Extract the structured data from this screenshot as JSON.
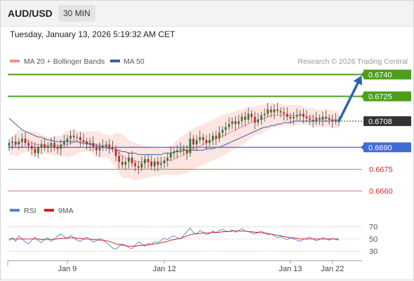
{
  "header": {
    "pair": "AUD/USD",
    "timeframe": "30 MIN"
  },
  "timestamp": "Tuesday, January 13, 2026 5:19:32 AM CET",
  "legend": {
    "ma20_bb": "MA 20 + Bollinger Bands",
    "ma50": "MA 50",
    "rsi": "RSI",
    "rsi_ma": "9MA"
  },
  "research_credit": "Research © 2026 Trading Central",
  "colors": {
    "resistance": "#4d9e1a",
    "current": "#333333",
    "pivot": "#3f6bd6",
    "support": "#cc2a2a",
    "bullish_candle": "#2e7d32",
    "bearish_candle": "#c62828",
    "bollinger_fill": "#fde1dc",
    "ma20": "#ef8f8f",
    "ma50": "#3a5f9e",
    "rsi_line": "#5b7fd0",
    "rsi_ma_line": "#cc2222",
    "arrow": "#2c64b0"
  },
  "chart_data": [
    {
      "type": "candlestick",
      "y_range": [
        0.6655,
        0.6745
      ],
      "levels": [
        {
          "label": "0.6740",
          "value": 0.674,
          "kind": "resistance"
        },
        {
          "label": "0.6725",
          "value": 0.6725,
          "kind": "resistance"
        },
        {
          "label": "0.6708",
          "value": 0.6708,
          "kind": "current"
        },
        {
          "label": "0.6690",
          "value": 0.669,
          "kind": "pivot"
        },
        {
          "label": "0.6675",
          "value": 0.6675,
          "kind": "support"
        },
        {
          "label": "0.6660",
          "value": 0.666,
          "kind": "support"
        }
      ],
      "close": [
        0.6693,
        0.6694,
        0.6692,
        0.6694,
        0.6696,
        0.6693,
        0.6691,
        0.6689,
        0.6686,
        0.669,
        0.6692,
        0.669,
        0.6691,
        0.6693,
        0.669,
        0.6689,
        0.6692,
        0.6694,
        0.6696,
        0.6698,
        0.6697,
        0.6697,
        0.6695,
        0.6694,
        0.6692,
        0.6693,
        0.669,
        0.6688,
        0.669,
        0.6691,
        0.6692,
        0.669,
        0.6689,
        0.6684,
        0.668,
        0.6678,
        0.668,
        0.6683,
        0.6679,
        0.6677,
        0.6676,
        0.6679,
        0.6682,
        0.668,
        0.6677,
        0.668,
        0.6678,
        0.6679,
        0.6681,
        0.6683,
        0.6686,
        0.6687,
        0.6688,
        0.6689,
        0.6688,
        0.6686,
        0.6696,
        0.6692,
        0.6695,
        0.6697,
        0.6695,
        0.6693,
        0.6695,
        0.6698,
        0.6696,
        0.67,
        0.6702,
        0.6704,
        0.6706,
        0.6708,
        0.6706,
        0.6708,
        0.6711,
        0.6709,
        0.6713,
        0.6711,
        0.6707,
        0.6709,
        0.6712,
        0.6713,
        0.6716,
        0.6714,
        0.6716,
        0.6715,
        0.6714,
        0.6713,
        0.6711,
        0.671,
        0.6711,
        0.6712,
        0.6713,
        0.6711,
        0.671,
        0.6709,
        0.6708,
        0.671,
        0.6709,
        0.6711,
        0.671,
        0.6709,
        0.6708,
        0.6709,
        0.6708
      ],
      "ma20": [
        0.669,
        0.6691,
        0.6692,
        0.6693,
        0.6694,
        0.6694,
        0.6694,
        0.6693,
        0.6692,
        0.6692,
        0.6692,
        0.6692,
        0.6691,
        0.6691,
        0.6691,
        0.6691,
        0.6691,
        0.6692,
        0.6692,
        0.6693,
        0.6693,
        0.6694,
        0.6694,
        0.6694,
        0.6694,
        0.6694,
        0.6693,
        0.6692,
        0.6692,
        0.6691,
        0.6691,
        0.669,
        0.6689,
        0.6688,
        0.6686,
        0.6684,
        0.6683,
        0.6682,
        0.6681,
        0.668,
        0.668,
        0.668,
        0.668,
        0.668,
        0.668,
        0.668,
        0.668,
        0.668,
        0.668,
        0.6681,
        0.6681,
        0.6682,
        0.6683,
        0.6684,
        0.6685,
        0.6686,
        0.6688,
        0.6689,
        0.669,
        0.6691,
        0.6692,
        0.6693,
        0.6694,
        0.6695,
        0.6696,
        0.6697,
        0.6698,
        0.6699,
        0.67,
        0.6701,
        0.6702,
        0.6703,
        0.6704,
        0.6705,
        0.6706,
        0.6707,
        0.6708,
        0.6709,
        0.6709,
        0.671,
        0.6711,
        0.6712,
        0.6712,
        0.6712,
        0.6712,
        0.6712,
        0.6712,
        0.6712,
        0.6712,
        0.6712,
        0.6712,
        0.6712,
        0.6711,
        0.6711,
        0.6711,
        0.671,
        0.671,
        0.671,
        0.671,
        0.671,
        0.6709,
        0.6709,
        0.6709
      ],
      "ma50": [
        0.671,
        0.6708,
        0.6706,
        0.6704,
        0.6702,
        0.6701,
        0.67,
        0.6699,
        0.6698,
        0.6697,
        0.6697,
        0.6696,
        0.6695,
        0.6695,
        0.6694,
        0.6694,
        0.6694,
        0.6694,
        0.6694,
        0.6694,
        0.6694,
        0.6694,
        0.6693,
        0.6693,
        0.6693,
        0.6692,
        0.6692,
        0.6691,
        0.6691,
        0.669,
        0.669,
        0.6689,
        0.6689,
        0.6688,
        0.6688,
        0.6687,
        0.6687,
        0.6686,
        0.6686,
        0.6686,
        0.6685,
        0.6685,
        0.6685,
        0.6685,
        0.6685,
        0.6685,
        0.6685,
        0.6685,
        0.6686,
        0.6686,
        0.6686,
        0.6687,
        0.6687,
        0.6687,
        0.6688,
        0.6688,
        0.6688,
        0.6688,
        0.6688,
        0.6688,
        0.6688,
        0.6689,
        0.6689,
        0.6689,
        0.669,
        0.669,
        0.6691,
        0.6692,
        0.6693,
        0.6694,
        0.6695,
        0.6696,
        0.6697,
        0.6698,
        0.6699,
        0.67,
        0.6701,
        0.6702,
        0.6703,
        0.6704,
        0.6704,
        0.6705,
        0.6705,
        0.6706,
        0.6706,
        0.6707,
        0.6707,
        0.6707,
        0.6708,
        0.6708,
        0.6708,
        0.6708,
        0.6708,
        0.6708,
        0.6708,
        0.6708,
        0.6708,
        0.6708,
        0.6708,
        0.6708,
        0.6708,
        0.6708,
        0.6708
      ],
      "bb_width": [
        0.0006,
        0.0006,
        0.0008,
        0.0009,
        0.0008,
        0.0007,
        0.0007,
        0.0008,
        0.0009,
        0.0008,
        0.0007,
        0.0006,
        0.0006,
        0.0006,
        0.0007,
        0.0007,
        0.0007,
        0.0008,
        0.0009,
        0.0009,
        0.0009,
        0.0008,
        0.0007,
        0.0007,
        0.0007,
        0.0007,
        0.0008,
        0.0009,
        0.0009,
        0.0008,
        0.0008,
        0.0008,
        0.001,
        0.0012,
        0.0014,
        0.0015,
        0.0014,
        0.0013,
        0.0013,
        0.0013,
        0.0012,
        0.0012,
        0.0011,
        0.0011,
        0.001,
        0.001,
        0.001,
        0.0009,
        0.0009,
        0.0009,
        0.001,
        0.0011,
        0.0012,
        0.0013,
        0.0013,
        0.0014,
        0.0014,
        0.0014,
        0.0014,
        0.0014,
        0.0014,
        0.0014,
        0.0014,
        0.0014,
        0.0014,
        0.0014,
        0.0014,
        0.0014,
        0.0013,
        0.0013,
        0.0013,
        0.0013,
        0.0012,
        0.0012,
        0.0011,
        0.0011,
        0.001,
        0.001,
        0.001,
        0.0009,
        0.0009,
        0.0009,
        0.0008,
        0.0008,
        0.0008,
        0.0007,
        0.0007,
        0.0007,
        0.0007,
        0.0007,
        0.0007,
        0.0006,
        0.0006,
        0.0006,
        0.0006,
        0.0006,
        0.0006,
        0.0006,
        0.0006,
        0.0006,
        0.0006,
        0.0006,
        0.0006
      ],
      "projection": {
        "from": 0.6708,
        "to": 0.674
      },
      "x_ticks": [
        {
          "label": "Jan 9",
          "index": 18
        },
        {
          "label": "Jan 12",
          "index": 48
        },
        {
          "label": "Jan 13",
          "index": 87
        },
        {
          "label": "Jan 22",
          "index": 100
        }
      ]
    },
    {
      "type": "line",
      "y_range": [
        20,
        80
      ],
      "y_ticks": [
        {
          "label": "70",
          "value": 70
        },
        {
          "label": "50",
          "value": 50
        },
        {
          "label": "30",
          "value": 30
        }
      ],
      "series": [
        {
          "name": "RSI",
          "values": [
            47,
            52,
            46,
            55,
            50,
            45,
            42,
            48,
            53,
            47,
            44,
            50,
            52,
            46,
            49,
            55,
            58,
            54,
            50,
            56,
            52,
            48,
            46,
            50,
            53,
            49,
            45,
            47,
            51,
            48,
            44,
            40,
            35,
            33,
            38,
            42,
            39,
            36,
            34,
            40,
            45,
            42,
            38,
            43,
            41,
            46,
            44,
            48,
            51,
            49,
            53,
            55,
            52,
            50,
            56,
            62,
            68,
            60,
            58,
            64,
            61,
            57,
            59,
            63,
            60,
            64,
            66,
            63,
            62,
            65,
            61,
            64,
            67,
            63,
            62,
            60,
            58,
            61,
            63,
            60,
            57,
            58,
            55,
            52,
            54,
            51,
            49,
            52,
            50,
            48,
            46,
            49,
            51,
            53,
            50,
            47,
            49,
            52,
            50,
            48,
            51,
            49,
            48
          ]
        },
        {
          "name": "9MA",
          "values": [
            50,
            50,
            50,
            50,
            50,
            50,
            50,
            50,
            50,
            50,
            49,
            49,
            49,
            49,
            50,
            50,
            51,
            51,
            52,
            52,
            52,
            51,
            51,
            50,
            50,
            50,
            49,
            49,
            48,
            48,
            47,
            46,
            44,
            42,
            41,
            40,
            39,
            38,
            38,
            38,
            39,
            39,
            40,
            40,
            41,
            42,
            42,
            44,
            45,
            46,
            48,
            49,
            50,
            51,
            53,
            55,
            57,
            58,
            59,
            59,
            60,
            60,
            60,
            61,
            61,
            61,
            62,
            62,
            62,
            63,
            63,
            63,
            63,
            63,
            62,
            62,
            61,
            61,
            60,
            60,
            59,
            58,
            57,
            56,
            55,
            54,
            53,
            52,
            52,
            51,
            50,
            50,
            50,
            50,
            50,
            50,
            50,
            50,
            50,
            50,
            50,
            50,
            50
          ]
        }
      ]
    }
  ]
}
